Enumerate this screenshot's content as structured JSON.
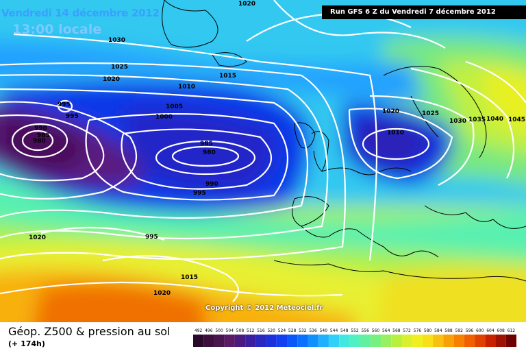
{
  "header": {
    "date_title": "Vendredi 14 décembre 2012",
    "time_title": "13:00 locale",
    "run_info": "Run GFS 6 Z du Vendredi 7 décembre 2012"
  },
  "copyright": "Copyright © 2012 Meteociel.fr",
  "legend": {
    "title": "Géop. Z500 & pression au sol",
    "subtitle": "(+ 174h)",
    "scale_values": [
      "492",
      "496",
      "500",
      "504",
      "508",
      "512",
      "516",
      "520",
      "524",
      "528",
      "532",
      "536",
      "540",
      "544",
      "548",
      "552",
      "556",
      "560",
      "564",
      "568",
      "572",
      "576",
      "580",
      "584",
      "588",
      "592",
      "596",
      "600",
      "604",
      "608",
      "612"
    ],
    "scale_colors": [
      "#2a0a2a",
      "#3d0f3d",
      "#4a154f",
      "#5a1a66",
      "#4a1a80",
      "#3a20a0",
      "#2a28c0",
      "#1c30dc",
      "#1040f0",
      "#0a58f8",
      "#0a70ff",
      "#1090ff",
      "#20b0ff",
      "#30d0f8",
      "#40e8e0",
      "#50f0c0",
      "#60f0a0",
      "#78f080",
      "#98f060",
      "#b8f040",
      "#d8f030",
      "#f0f020",
      "#f8e018",
      "#f8c010",
      "#f8a008",
      "#f88000",
      "#f06000",
      "#e04000",
      "#c82000",
      "#a01000",
      "#700000"
    ]
  },
  "isobar_labels": [
    {
      "text": "1020"
    },
    {
      "text": "1030"
    },
    {
      "text": "1025"
    },
    {
      "text": "1020"
    },
    {
      "text": "1015"
    },
    {
      "text": "1010"
    },
    {
      "text": "1005"
    },
    {
      "text": "1000"
    },
    {
      "text": "995"
    },
    {
      "text": "995"
    },
    {
      "text": "990"
    },
    {
      "text": "985"
    },
    {
      "text": "980"
    },
    {
      "text": "985"
    },
    {
      "text": "980"
    },
    {
      "text": "990"
    },
    {
      "text": "995"
    },
    {
      "text": "1020"
    },
    {
      "text": "1025"
    },
    {
      "text": "1010"
    },
    {
      "text": "1030"
    },
    {
      "text": "1035"
    },
    {
      "text": "1040"
    },
    {
      "text": "1045"
    },
    {
      "text": "1020"
    },
    {
      "text": "995"
    },
    {
      "text": "1015"
    },
    {
      "text": "1020"
    }
  ]
}
